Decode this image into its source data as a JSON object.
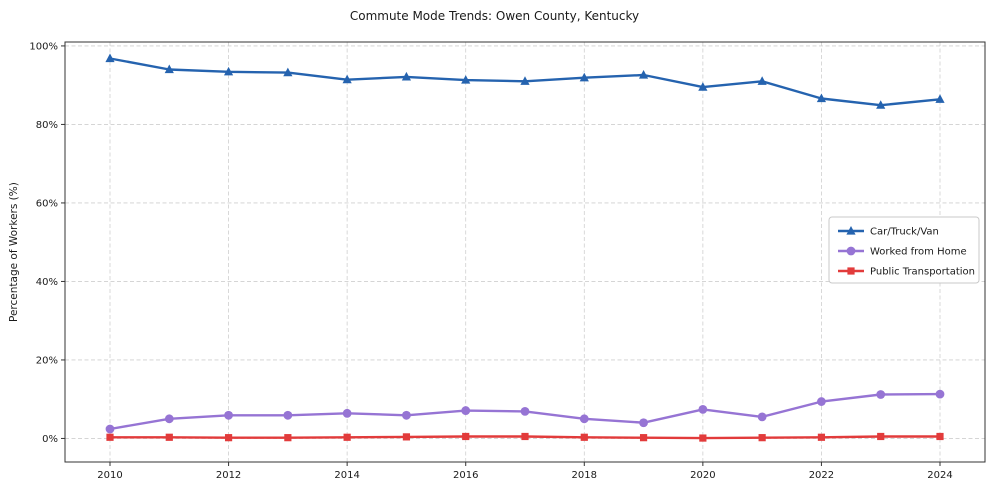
{
  "chart_data": {
    "type": "line",
    "title": "Commute Mode Trends: Owen County, Kentucky",
    "xlabel": "",
    "ylabel": "Percentage of Workers (%)",
    "x": [
      2010,
      2011,
      2012,
      2013,
      2014,
      2015,
      2016,
      2017,
      2018,
      2019,
      2020,
      2021,
      2022,
      2023,
      2024
    ],
    "xticks": [
      2010,
      2012,
      2014,
      2016,
      2018,
      2020,
      2022,
      2024
    ],
    "yticks": [
      0,
      20,
      40,
      60,
      80,
      100
    ],
    "ytick_labels": [
      "0%",
      "20%",
      "40%",
      "60%",
      "80%",
      "100%"
    ],
    "ylim": [
      -6,
      101
    ],
    "grid": "dashed",
    "legend_position": "center-right",
    "series": [
      {
        "name": "Car/Truck/Van",
        "color": "#2563af",
        "marker": "triangle",
        "values": [
          96.8,
          94.0,
          93.4,
          93.2,
          91.4,
          92.1,
          91.3,
          91.0,
          91.9,
          92.6,
          89.5,
          91.0,
          86.6,
          84.9,
          86.4
        ]
      },
      {
        "name": "Worked from Home",
        "color": "#9674d4",
        "marker": "circle",
        "values": [
          2.4,
          5.0,
          5.9,
          5.9,
          6.4,
          5.9,
          7.1,
          6.9,
          5.0,
          4.0,
          7.4,
          5.5,
          9.4,
          11.2,
          11.3
        ]
      },
      {
        "name": "Public Transportation",
        "color": "#e23b3b",
        "marker": "square",
        "values": [
          0.3,
          0.3,
          0.2,
          0.2,
          0.3,
          0.4,
          0.5,
          0.5,
          0.3,
          0.2,
          0.1,
          0.2,
          0.3,
          0.5,
          0.5
        ]
      }
    ]
  }
}
